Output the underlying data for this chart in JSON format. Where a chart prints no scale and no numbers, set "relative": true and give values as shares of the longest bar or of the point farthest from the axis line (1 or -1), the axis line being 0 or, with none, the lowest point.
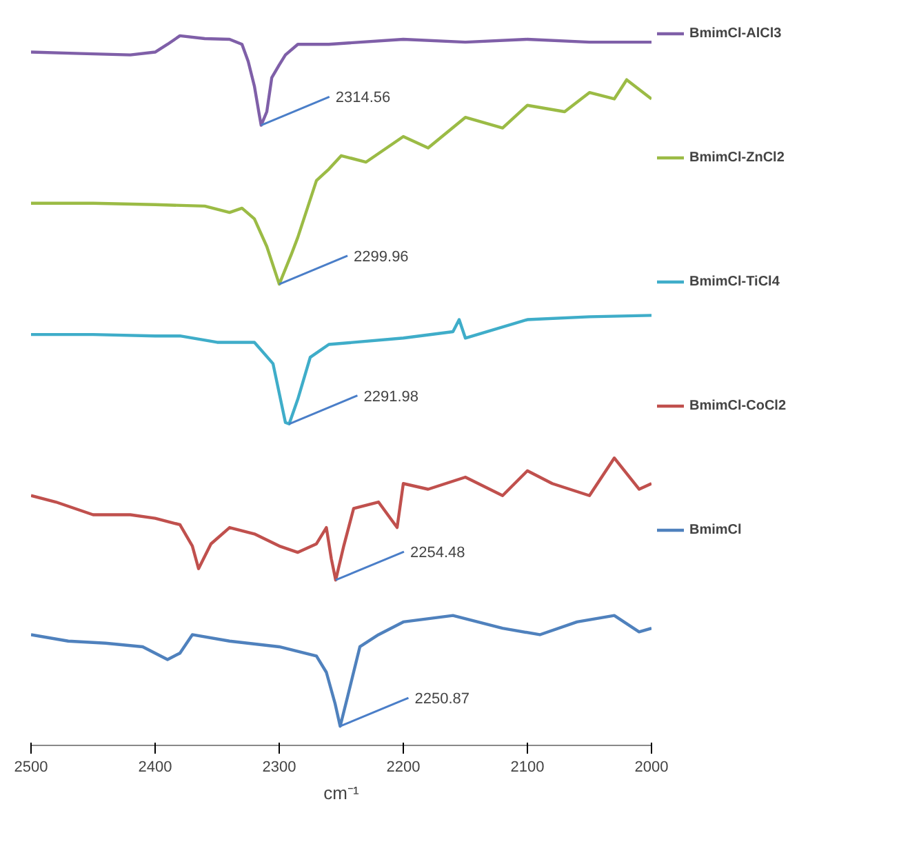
{
  "chart_data": {
    "type": "line",
    "relative": true,
    "xlabel": "cm⁻¹",
    "xlim": [
      2500,
      2000
    ],
    "xticks": [
      2500,
      2400,
      2300,
      2200,
      2100,
      2000
    ],
    "grid": false,
    "legend": "right",
    "marker": "none",
    "line_style": "solid",
    "series": [
      {
        "name": "BmimCl-AlCl3",
        "color": "#7f5fa8",
        "x": [
          2500,
          2460,
          2420,
          2400,
          2390,
          2380,
          2360,
          2340,
          2330,
          2325,
          2320,
          2316,
          2314.56,
          2310,
          2306,
          2300,
          2295,
          2285,
          2260,
          2200,
          2150,
          2100,
          2050,
          2000
        ],
        "values": [
          0.977,
          0.975,
          0.973,
          0.977,
          0.988,
          1.0,
          0.996,
          0.995,
          0.988,
          0.964,
          0.929,
          0.888,
          0.874,
          0.893,
          0.941,
          0.959,
          0.973,
          0.988,
          0.988,
          0.995,
          0.991,
          0.995,
          0.991,
          0.991
        ]
      },
      {
        "name": "BmimCl-ZnCl2",
        "color": "#9bbb45",
        "x": [
          2500,
          2450,
          2400,
          2360,
          2340,
          2330,
          2320,
          2310,
          2299.96,
          2290,
          2285,
          2270,
          2260,
          2250,
          2230,
          2200,
          2180,
          2150,
          2120,
          2100,
          2070,
          2050,
          2030,
          2020,
          2000
        ],
        "values": [
          0.764,
          0.764,
          0.762,
          0.76,
          0.751,
          0.757,
          0.742,
          0.703,
          0.65,
          0.693,
          0.716,
          0.796,
          0.812,
          0.831,
          0.822,
          0.858,
          0.842,
          0.885,
          0.87,
          0.902,
          0.893,
          0.92,
          0.911,
          0.938,
          0.911
        ]
      },
      {
        "name": "BmimCl-TiCl4",
        "color": "#3fadc9",
        "x": [
          2500,
          2450,
          2400,
          2380,
          2350,
          2320,
          2305,
          2295,
          2291.98,
          2285,
          2275,
          2260,
          2200,
          2160,
          2155,
          2150,
          2100,
          2050,
          2000
        ],
        "values": [
          0.579,
          0.579,
          0.577,
          0.577,
          0.568,
          0.568,
          0.538,
          0.455,
          0.453,
          0.488,
          0.547,
          0.565,
          0.574,
          0.583,
          0.6,
          0.574,
          0.6,
          0.604,
          0.606
        ]
      },
      {
        "name": "BmimCl-CoCl2",
        "color": "#c0504d",
        "x": [
          2500,
          2480,
          2450,
          2420,
          2400,
          2380,
          2370,
          2365,
          2355,
          2340,
          2320,
          2300,
          2285,
          2270,
          2262,
          2258,
          2254.48,
          2248,
          2240,
          2220,
          2205,
          2200,
          2180,
          2150,
          2120,
          2100,
          2080,
          2050,
          2030,
          2010,
          2000
        ],
        "values": [
          0.352,
          0.343,
          0.325,
          0.325,
          0.32,
          0.311,
          0.281,
          0.249,
          0.284,
          0.307,
          0.298,
          0.281,
          0.272,
          0.284,
          0.307,
          0.263,
          0.233,
          0.281,
          0.334,
          0.343,
          0.307,
          0.369,
          0.361,
          0.378,
          0.352,
          0.387,
          0.369,
          0.352,
          0.405,
          0.361,
          0.369
        ]
      },
      {
        "name": "BmimCl",
        "color": "#4f81bd",
        "x": [
          2500,
          2470,
          2440,
          2410,
          2390,
          2380,
          2370,
          2340,
          2300,
          2270,
          2262,
          2255,
          2250.87,
          2245,
          2235,
          2220,
          2200,
          2160,
          2120,
          2090,
          2060,
          2030,
          2010,
          2000
        ],
        "values": [
          0.156,
          0.147,
          0.144,
          0.139,
          0.121,
          0.13,
          0.156,
          0.147,
          0.139,
          0.126,
          0.103,
          0.059,
          0.027,
          0.068,
          0.139,
          0.156,
          0.174,
          0.183,
          0.165,
          0.156,
          0.174,
          0.183,
          0.16,
          0.165
        ]
      }
    ],
    "annotations": [
      {
        "text": "2314.56",
        "x": 2314.56,
        "y": 0.874
      },
      {
        "text": "2299.96",
        "x": 2299.96,
        "y": 0.65
      },
      {
        "text": "2291.98",
        "x": 2291.98,
        "y": 0.453
      },
      {
        "text": "2254.48",
        "x": 2254.48,
        "y": 0.233
      },
      {
        "text": "2250.87",
        "x": 2250.87,
        "y": 0.027
      }
    ]
  }
}
